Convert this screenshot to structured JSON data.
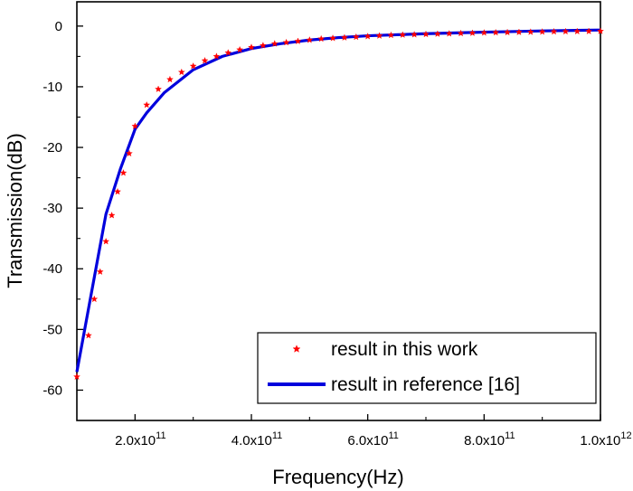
{
  "chart_data": {
    "type": "line",
    "title": "",
    "xlabel": "Frequency(Hz)",
    "ylabel": "Transmission(dB)",
    "xlim": [
      100000000000.0,
      1000000000000.0
    ],
    "ylim": [
      -65,
      4
    ],
    "x_ticks": [
      {
        "value": 200000000000.0,
        "mantissa": "2.0x10",
        "exp": "11"
      },
      {
        "value": 400000000000.0,
        "mantissa": "4.0x10",
        "exp": "11"
      },
      {
        "value": 600000000000.0,
        "mantissa": "6.0x10",
        "exp": "11"
      },
      {
        "value": 800000000000.0,
        "mantissa": "8.0x10",
        "exp": "11"
      },
      {
        "value": 1000000000000.0,
        "mantissa": "1.0x10",
        "exp": "12"
      }
    ],
    "y_ticks": [
      0,
      -10,
      -20,
      -30,
      -40,
      -50,
      -60
    ],
    "y_tick_labels": [
      "0",
      "-10",
      "-20",
      "-30",
      "-40",
      "-50",
      "-60"
    ],
    "grid": false,
    "legend_position": "bottom-right",
    "series": [
      {
        "name": "result in this work",
        "style": "markers",
        "marker": "star",
        "color": "#ff0000",
        "x": [
          100000000000.0,
          120000000000.0,
          130000000000.0,
          140000000000.0,
          150000000000.0,
          160000000000.0,
          170000000000.0,
          180000000000.0,
          190000000000.0,
          200000000000.0,
          220000000000.0,
          240000000000.0,
          260000000000.0,
          280000000000.0,
          300000000000.0,
          320000000000.0,
          340000000000.0,
          360000000000.0,
          380000000000.0,
          400000000000.0,
          420000000000.0,
          440000000000.0,
          460000000000.0,
          480000000000.0,
          500000000000.0,
          520000000000.0,
          540000000000.0,
          560000000000.0,
          580000000000.0,
          600000000000.0,
          620000000000.0,
          640000000000.0,
          660000000000.0,
          680000000000.0,
          700000000000.0,
          720000000000.0,
          740000000000.0,
          760000000000.0,
          780000000000.0,
          800000000000.0,
          820000000000.0,
          840000000000.0,
          860000000000.0,
          880000000000.0,
          900000000000.0,
          920000000000.0,
          940000000000.0,
          960000000000.0,
          980000000000.0,
          1000000000000.0
        ],
        "y": [
          -57.8,
          -51.0,
          -45.0,
          -40.5,
          -35.5,
          -31.2,
          -27.3,
          -24.2,
          -21.0,
          -16.5,
          -13.0,
          -10.4,
          -8.8,
          -7.6,
          -6.6,
          -5.7,
          -5.0,
          -4.4,
          -3.9,
          -3.5,
          -3.2,
          -2.9,
          -2.7,
          -2.5,
          -2.3,
          -2.1,
          -2.0,
          -1.9,
          -1.8,
          -1.7,
          -1.6,
          -1.5,
          -1.45,
          -1.4,
          -1.35,
          -1.3,
          -1.25,
          -1.2,
          -1.15,
          -1.1,
          -1.07,
          -1.04,
          -1.01,
          -0.98,
          -0.95,
          -0.92,
          -0.9,
          -0.88,
          -0.86,
          -0.84
        ]
      },
      {
        "name": "result in reference [16]",
        "style": "line",
        "color": "#0000dd",
        "x": [
          100000000000.0,
          125000000000.0,
          150000000000.0,
          175000000000.0,
          200000000000.0,
          220000000000.0,
          250000000000.0,
          300000000000.0,
          350000000000.0,
          400000000000.0,
          450000000000.0,
          500000000000.0,
          550000000000.0,
          600000000000.0,
          700000000000.0,
          800000000000.0,
          900000000000.0,
          1000000000000.0
        ],
        "y": [
          -57.0,
          -44.0,
          -31.0,
          -23.5,
          -17.0,
          -14.3,
          -11.0,
          -7.2,
          -5.0,
          -3.7,
          -2.9,
          -2.3,
          -1.9,
          -1.6,
          -1.25,
          -1.0,
          -0.8,
          -0.65
        ]
      }
    ]
  }
}
